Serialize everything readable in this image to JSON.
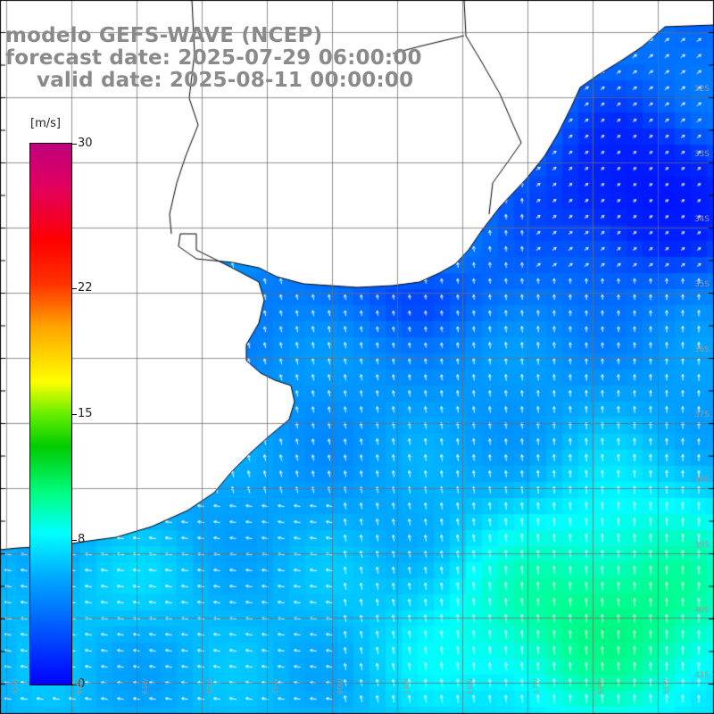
{
  "title": {
    "line1": "modelo GEFS-WAVE (NCEP)",
    "line2": "forecast date: 2025-07-29 06:00:00",
    "line3": "valid date: 2025-08-11 00:00:00"
  },
  "colorbar": {
    "unit": "[m/s]",
    "min": 0,
    "max": 30,
    "tick_labels": [
      "30",
      "22",
      "15",
      "8",
      "0"
    ],
    "tick_values": [
      30,
      22,
      15,
      8,
      0
    ]
  },
  "map": {
    "variable": "wind speed with direction arrows",
    "land_color": "#ffffff",
    "grid_color": "#808080",
    "coastline_color": "#000000",
    "arrow_color": "#ffffff",
    "lat_labels": [
      "32S",
      "33S",
      "34S",
      "35S",
      "36S",
      "37S",
      "38S",
      "39S",
      "40S",
      "41S"
    ],
    "lon_labels": [
      "65W",
      "64W",
      "63W",
      "62W",
      "61W",
      "60W",
      "59W",
      "58W",
      "57W",
      "56W",
      "55W"
    ]
  }
}
